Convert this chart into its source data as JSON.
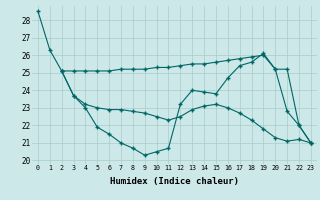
{
  "xlabel": "Humidex (Indice chaleur)",
  "background_color": "#cce8e8",
  "grid_color": "#aacccc",
  "line_color": "#006666",
  "xlim": [
    -0.5,
    23.5
  ],
  "ylim": [
    19.8,
    28.8
  ],
  "yticks": [
    20,
    21,
    22,
    23,
    24,
    25,
    26,
    27,
    28
  ],
  "xticks": [
    0,
    1,
    2,
    3,
    4,
    5,
    6,
    7,
    8,
    9,
    10,
    11,
    12,
    13,
    14,
    15,
    16,
    17,
    18,
    19,
    20,
    21,
    22,
    23
  ],
  "line1_x": [
    0,
    1,
    2,
    3,
    4,
    5,
    6,
    7,
    8,
    9,
    10,
    11,
    12,
    13,
    14,
    15,
    16,
    17,
    18,
    19,
    20,
    21,
    22,
    23
  ],
  "line1_y": [
    28.5,
    26.3,
    25.1,
    25.1,
    25.1,
    25.1,
    25.1,
    25.2,
    25.2,
    25.2,
    25.3,
    25.3,
    25.4,
    25.5,
    25.5,
    25.6,
    25.7,
    25.8,
    25.9,
    26.0,
    25.2,
    25.2,
    22.0,
    21.0
  ],
  "line2_x": [
    2,
    3,
    4,
    5,
    6,
    7,
    8,
    9,
    10,
    11,
    12,
    13,
    14,
    15,
    16,
    17,
    18,
    19,
    20,
    21,
    22,
    23
  ],
  "line2_y": [
    25.1,
    23.7,
    23.0,
    21.9,
    21.5,
    21.0,
    20.7,
    20.3,
    20.5,
    20.7,
    23.2,
    24.0,
    23.9,
    23.8,
    24.7,
    25.4,
    25.6,
    26.1,
    25.2,
    22.8,
    22.0,
    21.0
  ],
  "line3_x": [
    2,
    3,
    4,
    5,
    6,
    7,
    8,
    9,
    10,
    11,
    12,
    13,
    14,
    15,
    16,
    17,
    18,
    19,
    20,
    21,
    22,
    23
  ],
  "line3_y": [
    25.1,
    23.7,
    23.2,
    23.0,
    22.9,
    22.9,
    22.8,
    22.7,
    22.5,
    22.3,
    22.5,
    22.9,
    23.1,
    23.2,
    23.0,
    22.7,
    22.3,
    21.8,
    21.3,
    21.1,
    21.2,
    21.0
  ]
}
